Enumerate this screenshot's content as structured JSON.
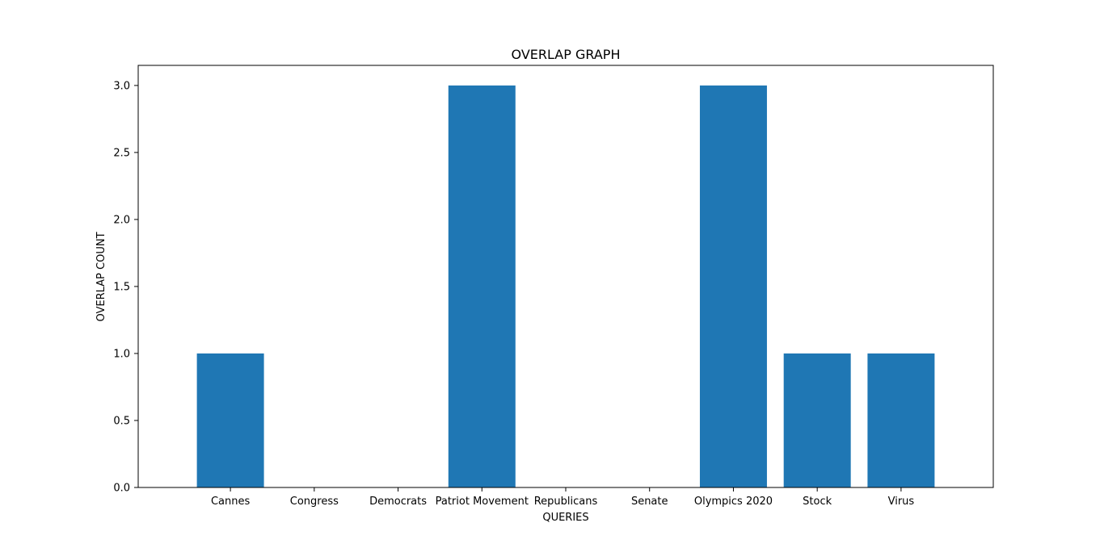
{
  "chart_data": {
    "type": "bar",
    "title": "OVERLAP GRAPH",
    "xlabel": "QUERIES",
    "ylabel": "OVERLAP COUNT",
    "categories": [
      "Cannes",
      "Congress",
      "Democrats",
      "Patriot Movement",
      "Republicans",
      "Senate",
      "Olympics 2020",
      "Stock",
      "Virus"
    ],
    "values": [
      1,
      0,
      0,
      3,
      0,
      0,
      3,
      1,
      1
    ],
    "ylim": [
      0,
      3.15
    ],
    "yticks": [
      "0.0",
      "0.5",
      "1.0",
      "1.5",
      "2.0",
      "2.5",
      "3.0"
    ],
    "grid": false,
    "bar_color": "#1f77b4"
  }
}
